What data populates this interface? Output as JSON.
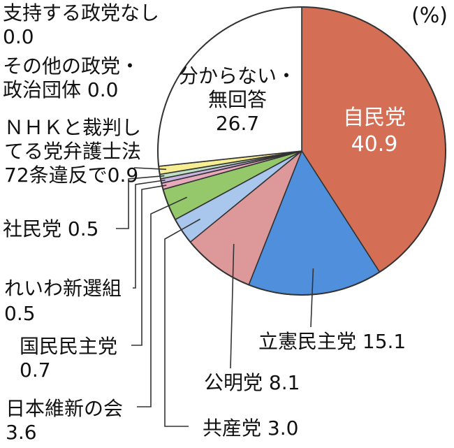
{
  "chart_data": {
    "type": "pie",
    "unit": "(%)",
    "slices": [
      {
        "lines": [
          "自民党",
          "40.9"
        ],
        "value": 40.9,
        "color": "#d46f55"
      },
      {
        "lines": [
          "立憲民主党 15.1"
        ],
        "value": 15.1,
        "color": "#4f8fdc"
      },
      {
        "lines": [
          "公明党 8.1"
        ],
        "value": 8.1,
        "color": "#dd9999"
      },
      {
        "lines": [
          "共産党 3.0"
        ],
        "value": 3.0,
        "color": "#a9c7ec"
      },
      {
        "lines": [
          "日本維新の会",
          "3.6"
        ],
        "value": 3.6,
        "color": "#95c86a"
      },
      {
        "lines": [
          "国民民主党",
          "0.7"
        ],
        "value": 0.7,
        "color": "#e9a9bd"
      },
      {
        "lines": [
          "れいわ新選組",
          "0.5"
        ],
        "value": 0.5,
        "color": "#c9b3df"
      },
      {
        "lines": [
          "社民党 0.5"
        ],
        "value": 0.5,
        "color": "#bfe0c4"
      },
      {
        "lines": [
          "ＮＨＫと裁判し",
          "てる党弁護士法",
          "72条違反で0.9"
        ],
        "value": 0.9,
        "color": "#f7ee93"
      },
      {
        "lines": [
          "その他の政党・",
          "政治団体 0.0"
        ],
        "value": 0.0,
        "color": "#ffffff"
      },
      {
        "lines": [
          "支持する政党なし",
          "0.0"
        ],
        "value": 0.0,
        "color": "#ffffff"
      },
      {
        "lines": [
          "分からない・",
          "無回答",
          "26.7"
        ],
        "value": 26.7,
        "color": "#ffffff"
      }
    ]
  }
}
